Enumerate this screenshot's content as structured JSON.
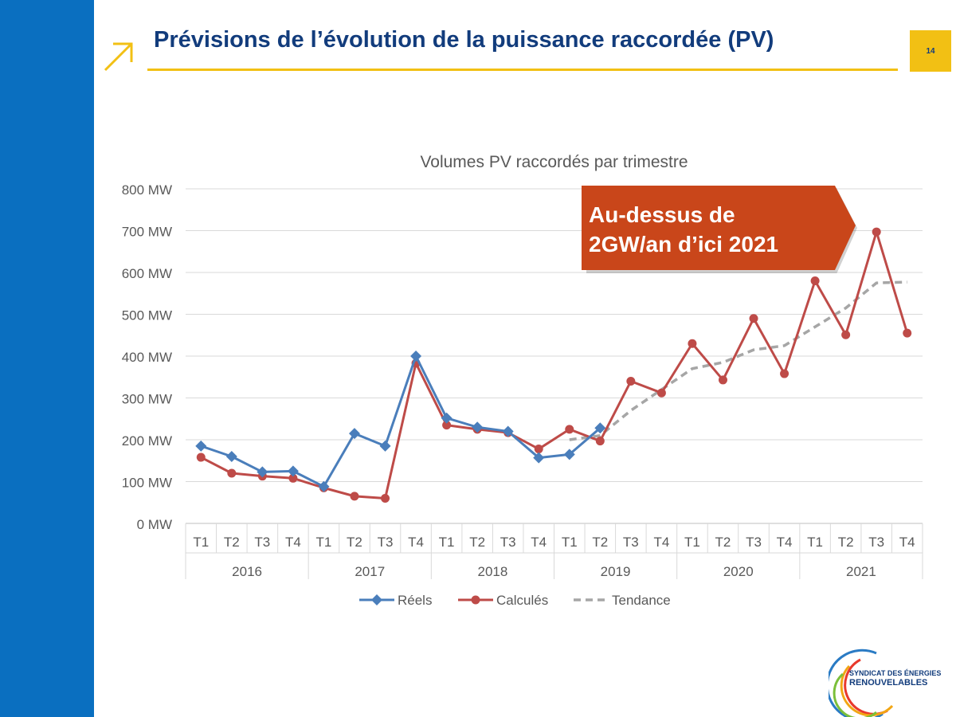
{
  "slide": {
    "title": "Prévisions de l’évolution de la puissance raccordée (PV)",
    "page_number": "14",
    "callout_line1": "Au-dessus de",
    "callout_line2": "2GW/an d’ici 2021",
    "logo_line1": "SYNDICAT DES ÉNERGIES",
    "logo_line2": "RENOUVELABLES"
  },
  "colors": {
    "sidebar": "#0a6fc0",
    "title": "#123c7c",
    "accent": "#f2c014",
    "callout": "#c9461a",
    "reels": "#4a7ebb",
    "calcules": "#be4b48",
    "tendance": "#a6a6a6"
  },
  "chart_data": {
    "type": "line",
    "title": "Volumes PV raccordés par trimestre",
    "ylim": [
      0,
      800
    ],
    "y_ticks": [
      0,
      100,
      200,
      300,
      400,
      500,
      600,
      700,
      800
    ],
    "y_tick_labels": [
      "0 MW",
      "100 MW",
      "200 MW",
      "300 MW",
      "400 MW",
      "500 MW",
      "600 MW",
      "700 MW",
      "800 MW"
    ],
    "years": [
      "2016",
      "2017",
      "2018",
      "2019",
      "2020",
      "2021"
    ],
    "quarters": [
      "T1",
      "T2",
      "T3",
      "T4"
    ],
    "grid": true,
    "legend_position": "bottom",
    "series": [
      {
        "name": "Réels",
        "marker": "diamond",
        "style": "solid",
        "values": [
          185,
          160,
          123,
          125,
          88,
          215,
          185,
          400,
          252,
          230,
          220,
          157,
          165,
          228,
          null,
          null,
          null,
          null,
          null,
          null,
          null,
          null,
          null,
          null
        ]
      },
      {
        "name": "Calculés",
        "marker": "circle",
        "style": "solid",
        "values": [
          158,
          120,
          113,
          108,
          85,
          65,
          60,
          383,
          235,
          225,
          217,
          178,
          225,
          197,
          340,
          312,
          430,
          343,
          490,
          358,
          580,
          451,
          697,
          455
        ]
      },
      {
        "name": "Tendance",
        "marker": "none",
        "style": "dashed",
        "values": [
          null,
          null,
          null,
          null,
          null,
          null,
          null,
          null,
          null,
          null,
          null,
          null,
          200,
          210,
          270,
          320,
          370,
          385,
          415,
          425,
          470,
          515,
          575,
          577
        ]
      }
    ]
  }
}
